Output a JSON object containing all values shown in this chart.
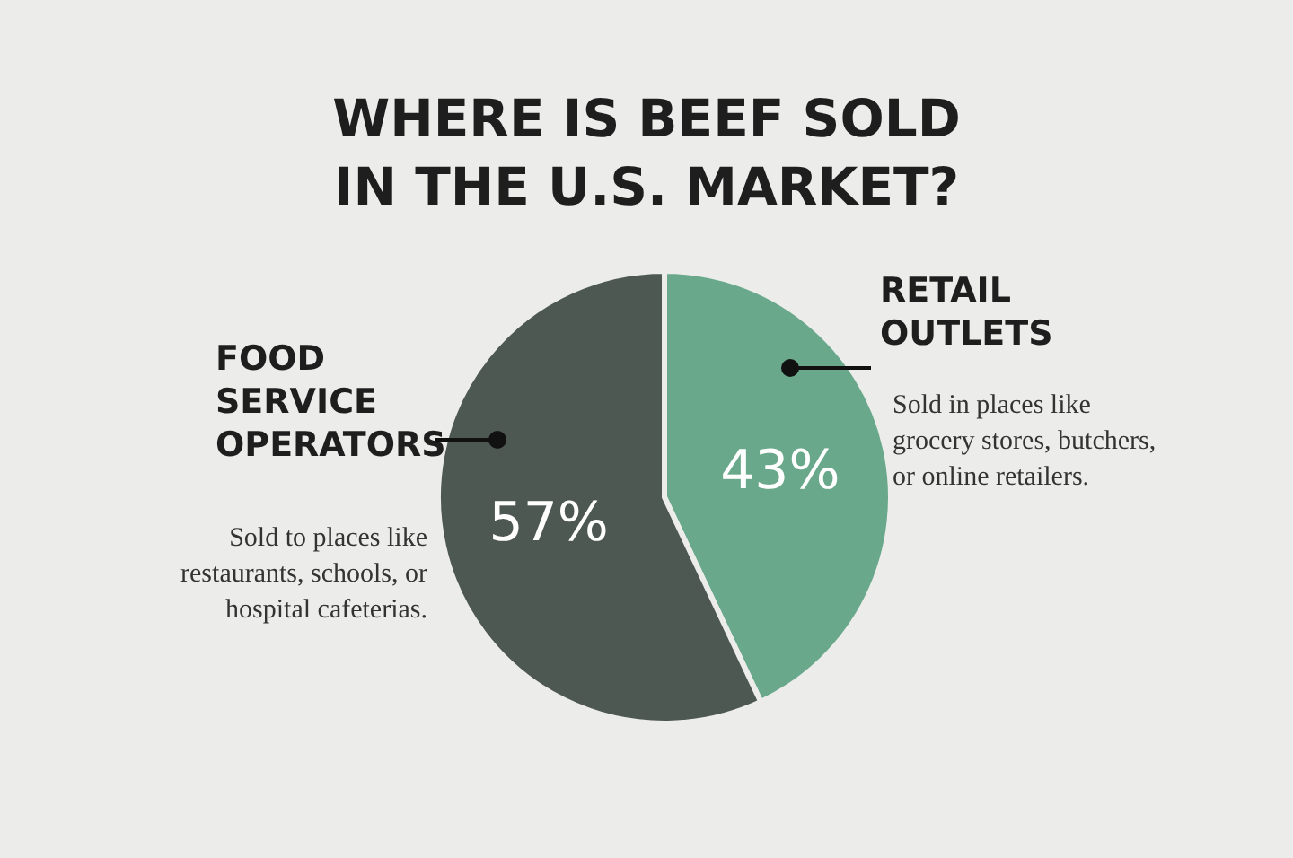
{
  "chart_data": {
    "type": "pie",
    "title": "WHERE IS BEEF SOLD\nIN THE U.S. MARKET?",
    "categories": [
      "RETAIL OUTLETS",
      "FOOD SERVICE OPERATORS"
    ],
    "values": [
      43,
      57
    ],
    "colors": [
      "#6aa88b",
      "#4e5852"
    ],
    "value_labels": [
      "43%",
      "57%"
    ],
    "annotations": [
      "Sold in places like grocery stores, butchers, or online retailers.",
      "Sold to places like restaurants, schools, or hospital cafeterias."
    ]
  }
}
